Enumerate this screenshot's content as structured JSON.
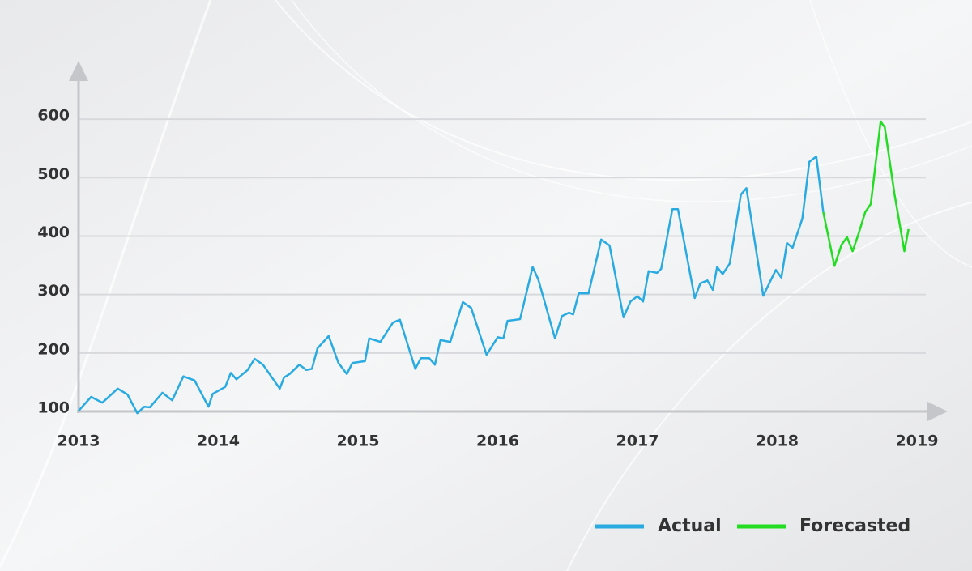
{
  "chart_data": {
    "type": "line",
    "xlim": [
      2013,
      2019
    ],
    "xticks": [
      2013,
      2014,
      2015,
      2016,
      2017,
      2018,
      2019
    ],
    "ylim": [
      100,
      650
    ],
    "yticks": [
      100,
      200,
      300,
      400,
      500,
      600
    ],
    "grid": true,
    "legend": "lower right",
    "series": [
      {
        "name": "Actual",
        "color": "#29abe2",
        "x": [
          2013.0,
          2013.09,
          2013.17,
          2013.28,
          2013.35,
          2013.42,
          2013.47,
          2013.51,
          2013.6,
          2013.67,
          2013.75,
          2013.83,
          2013.93,
          2013.96,
          2014.05,
          2014.09,
          2014.13,
          2014.21,
          2014.26,
          2014.32,
          2014.44,
          2014.47,
          2014.51,
          2014.58,
          2014.63,
          2014.67,
          2014.71,
          2014.79,
          2014.86,
          2014.92,
          2014.96,
          2015.05,
          2015.08,
          2015.16,
          2015.25,
          2015.3,
          2015.41,
          2015.45,
          2015.51,
          2015.55,
          2015.59,
          2015.66,
          2015.75,
          2015.81,
          2015.92,
          2016.0,
          2016.04,
          2016.07,
          2016.16,
          2016.25,
          2016.29,
          2016.41,
          2016.46,
          2016.51,
          2016.54,
          2016.58,
          2016.65,
          2016.74,
          2016.8,
          2016.9,
          2016.95,
          2017.0,
          2017.04,
          2017.08,
          2017.14,
          2017.17,
          2017.25,
          2017.29,
          2017.41,
          2017.45,
          2017.5,
          2017.54,
          2017.57,
          2017.61,
          2017.66,
          2017.74,
          2017.78,
          2017.9,
          2017.99,
          2018.03,
          2018.07,
          2018.11,
          2018.18,
          2018.23,
          2018.28,
          2018.33
        ],
        "values": [
          101,
          125,
          115,
          139,
          129,
          97,
          108,
          107,
          132,
          119,
          160,
          153,
          108,
          130,
          142,
          166,
          155,
          171,
          190,
          180,
          139,
          158,
          164,
          180,
          171,
          173,
          208,
          229,
          183,
          164,
          183,
          186,
          225,
          219,
          252,
          257,
          173,
          191,
          191,
          180,
          222,
          219,
          287,
          277,
          197,
          227,
          225,
          255,
          258,
          347,
          326,
          225,
          263,
          269,
          266,
          302,
          302,
          394,
          384,
          261,
          288,
          297,
          288,
          340,
          337,
          344,
          446,
          446,
          294,
          319,
          324,
          308,
          347,
          335,
          353,
          471,
          482,
          298,
          342,
          329,
          388,
          380,
          430,
          527,
          536,
          441
        ]
      },
      {
        "name": "Forecasted",
        "color": "#22dd22",
        "x": [
          2018.33,
          2018.41,
          2018.46,
          2018.5,
          2018.54,
          2018.58,
          2018.63,
          2018.67,
          2018.74,
          2018.77,
          2018.84,
          2018.91,
          2018.94
        ],
        "values": [
          441,
          349,
          385,
          398,
          374,
          402,
          441,
          455,
          596,
          586,
          471,
          374,
          412
        ]
      }
    ]
  }
}
